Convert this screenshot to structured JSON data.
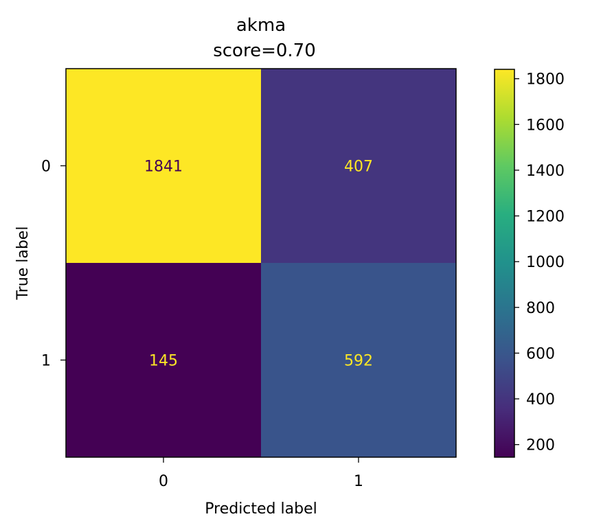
{
  "chart_data": {
    "type": "heatmap",
    "title": "akma",
    "subtitle": "score=0.70",
    "xlabel": "Predicted label",
    "ylabel": "True label",
    "x_categories": [
      "0",
      "1"
    ],
    "y_categories": [
      "0",
      "1"
    ],
    "values": [
      [
        1841,
        407
      ],
      [
        145,
        592
      ]
    ],
    "colormap": "viridis",
    "colorbar": {
      "range": [
        145,
        1841
      ],
      "ticks": [
        200,
        400,
        600,
        800,
        1000,
        1200,
        1400,
        1600,
        1800
      ],
      "tick_labels": [
        "200",
        "400",
        "600",
        "800",
        "1000",
        "1200",
        "1400",
        "1600",
        "1800"
      ]
    },
    "text_colors": {
      "on_light": "#440154",
      "on_dark": "#fde725"
    }
  }
}
